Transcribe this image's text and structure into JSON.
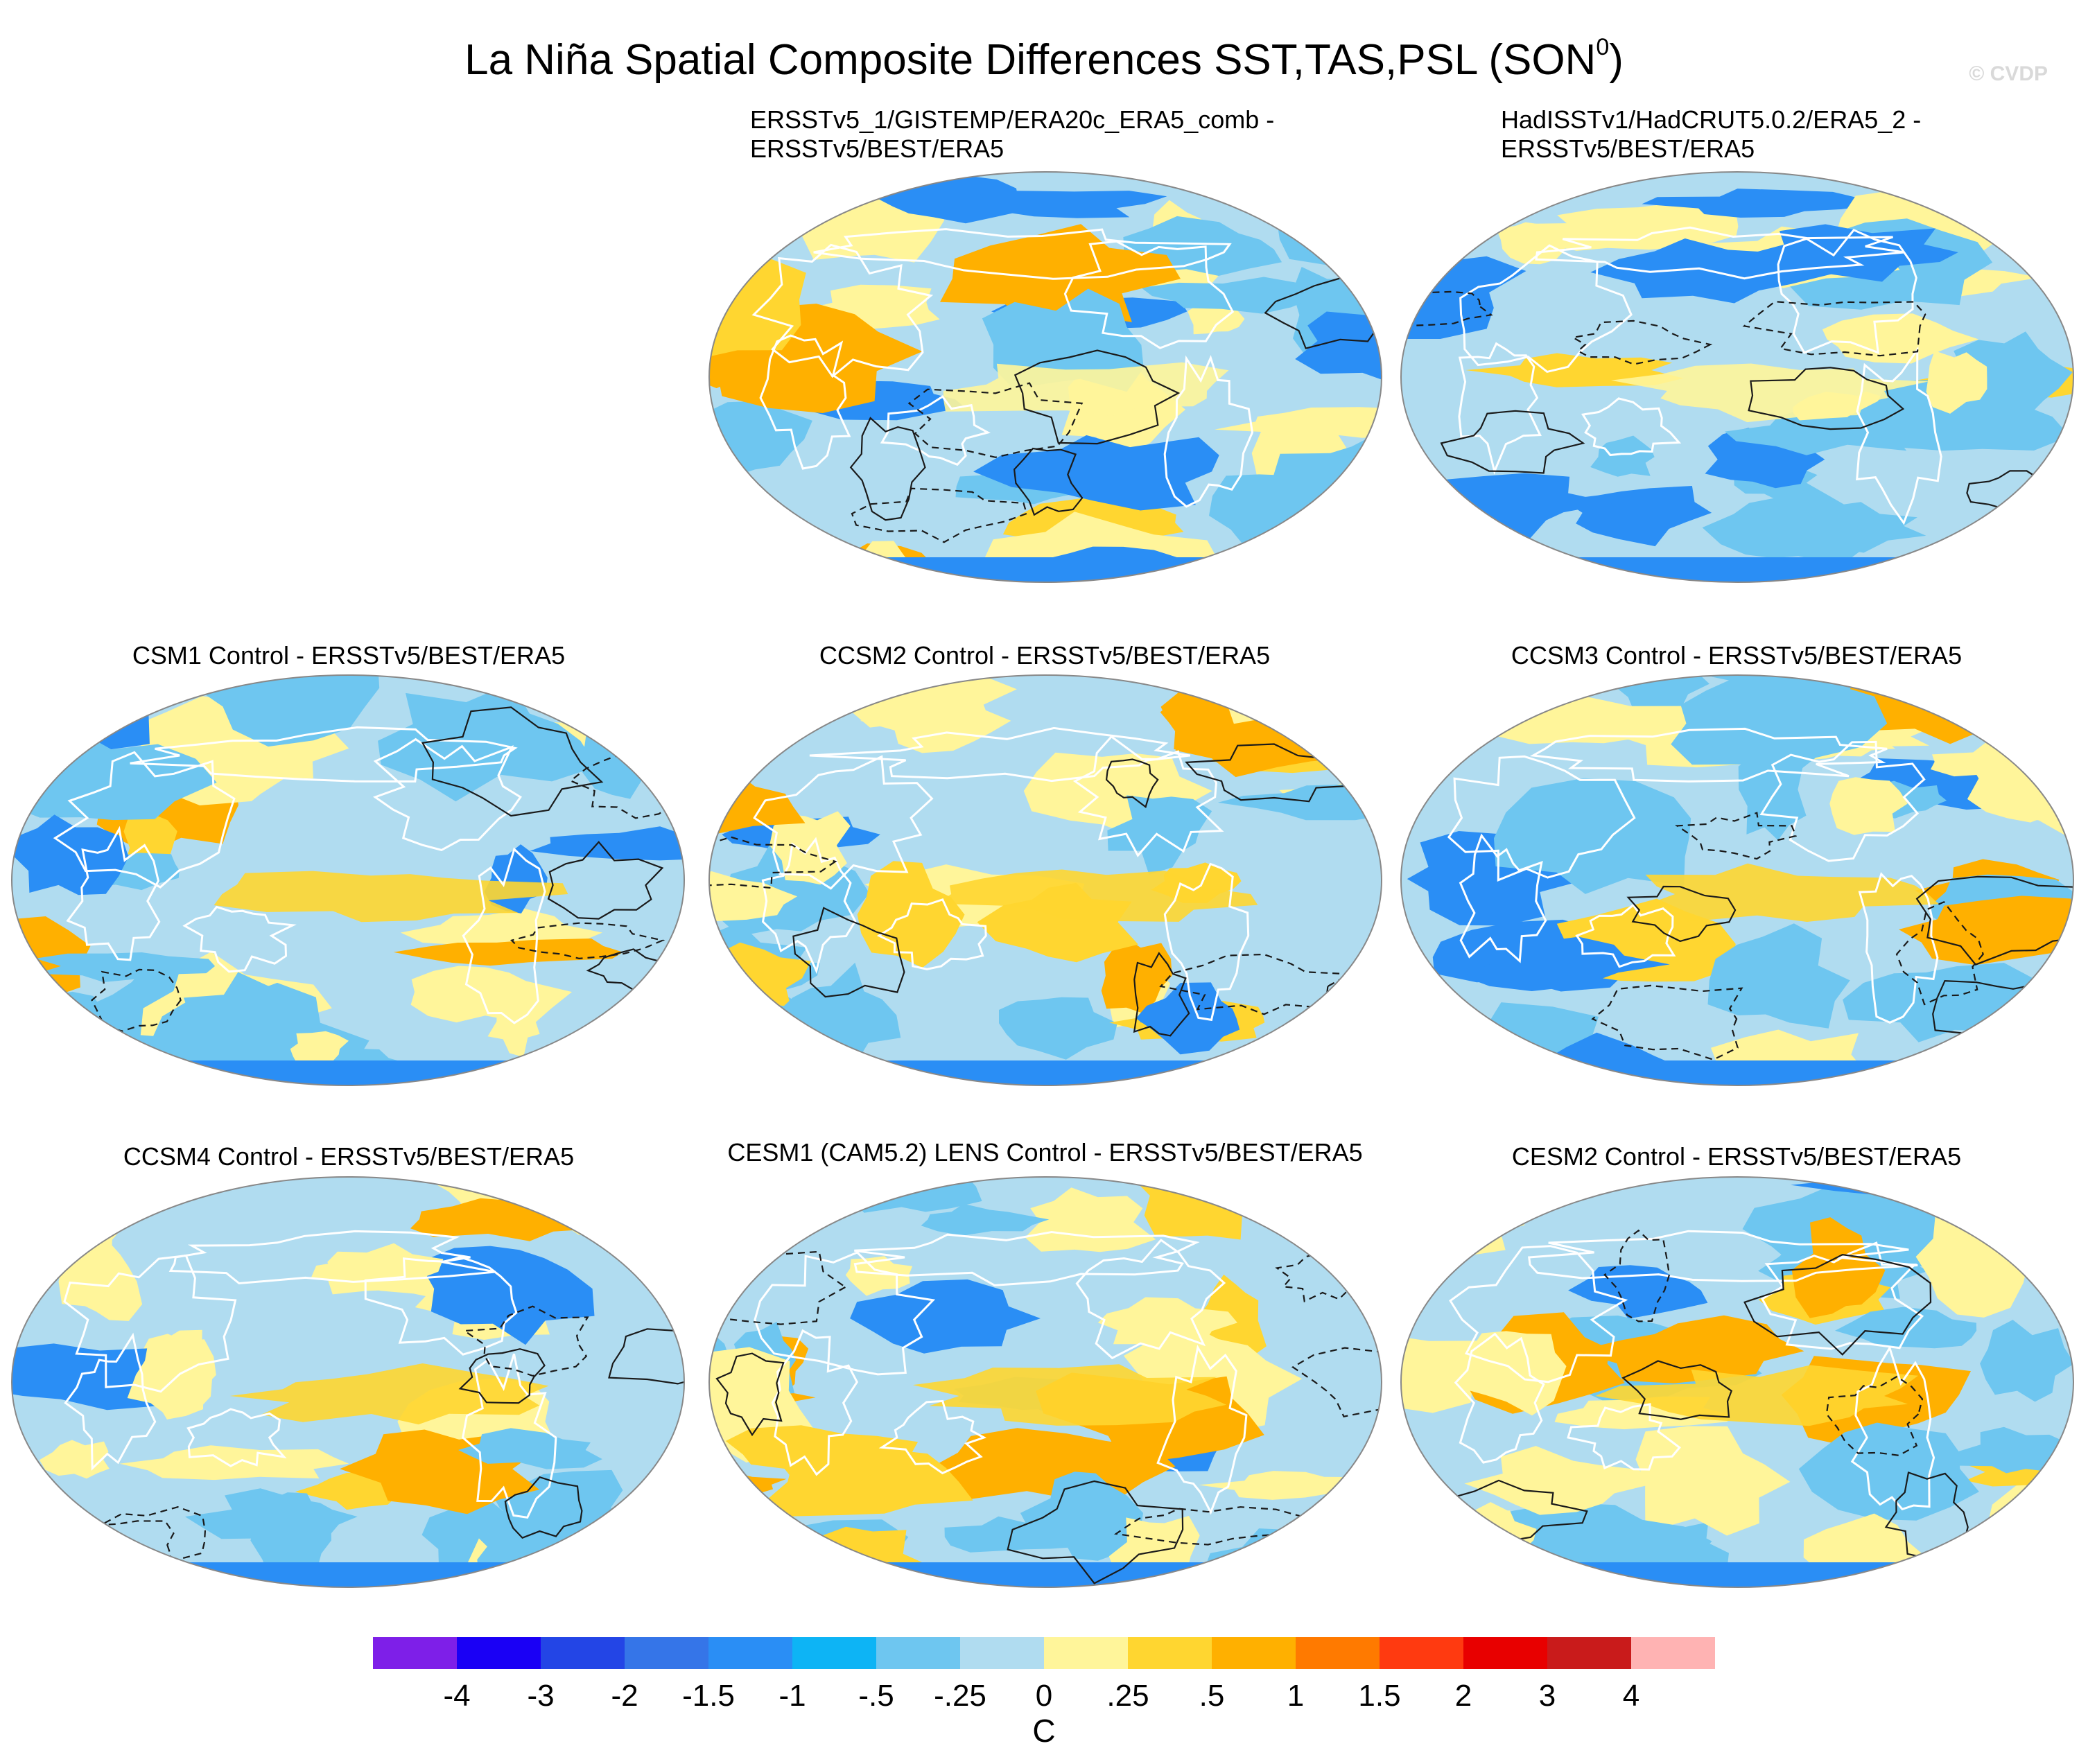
{
  "title": {
    "main": "La Niña Spatial Composite Differences SST,TAS,PSL (SON",
    "superscript": "0",
    "close": ")"
  },
  "watermark": "© CVDP",
  "panels": [
    {
      "line1": "ERSSTv5_1/GISTEMP/ERA20c_ERA5_comb -",
      "line2": "ERSSTv5/BEST/ERA5"
    },
    {
      "line1": "HadISSTv1/HadCRUT5.0.2/ERA5_2 -",
      "line2": "ERSSTv5/BEST/ERA5"
    },
    {
      "line1": "CSM1 Control - ERSSTv5/BEST/ERA5"
    },
    {
      "line1": "CCSM2 Control - ERSSTv5/BEST/ERA5"
    },
    {
      "line1": "CCSM3 Control - ERSSTv5/BEST/ERA5"
    },
    {
      "line1": "CCSM4 Control - ERSSTv5/BEST/ERA5"
    },
    {
      "line1": "CESM1 (CAM5.2) LENS Control - ERSSTv5/BEST/ERA5"
    },
    {
      "line1": "CESM2 Control - ERSSTv5/BEST/ERA5"
    }
  ],
  "colorbar": {
    "colors": [
      "#7e1fe8",
      "#1a00f5",
      "#2345e6",
      "#3575e8",
      "#2a8ef5",
      "#0db4f5",
      "#6ec6f0",
      "#b0dcf0",
      "#fff59a",
      "#ffd630",
      "#ffb000",
      "#ff7a00",
      "#ff3a10",
      "#e80000",
      "#c91b1b",
      "#ffb3b3"
    ],
    "labels": [
      "-4",
      "-3",
      "-2",
      "-1.5",
      "-1",
      "-.5",
      "-.25",
      "0",
      ".25",
      ".5",
      "1",
      "1.5",
      "2",
      "3",
      "4"
    ],
    "units": "C"
  },
  "map_colors": {
    "ocean_base": "#b0dcf0",
    "warm": "#fff59a",
    "warmer": "#ffd630",
    "warmest": "#ffb000",
    "cool": "#6ec6f0",
    "cooler": "#2a8ef5",
    "coast": "#ffffff",
    "contour": "#1a1a1a"
  }
}
